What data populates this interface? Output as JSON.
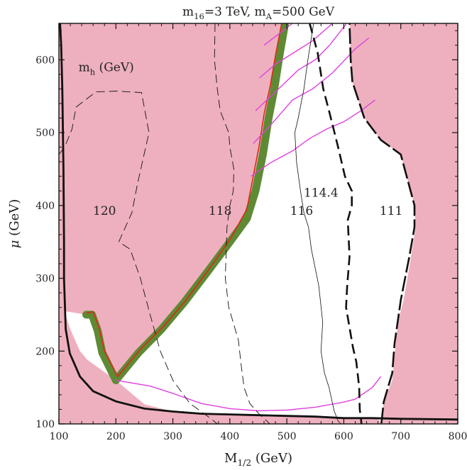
{
  "chart_data": {
    "type": "contour",
    "title_parts": [
      {
        "t": "m",
        "sub": "16",
        "after": "=3 TeV,  "
      },
      {
        "t": "m",
        "sub": "A",
        "after": "=500 GeV"
      }
    ],
    "xlabel": {
      "t": "M",
      "sub": "1/2",
      "after": " (GeV)"
    },
    "ylabel": {
      "greek": "μ",
      "after": " (GeV)"
    },
    "xlim": [
      100,
      800
    ],
    "ylim": [
      100,
      650
    ],
    "x_ticks": [
      100,
      200,
      300,
      400,
      500,
      600,
      700,
      800
    ],
    "y_ticks": [
      100,
      200,
      300,
      400,
      500,
      600
    ],
    "x_tick_labels": [
      "100",
      "200",
      "300",
      "400",
      "500",
      "600",
      "700",
      "800"
    ],
    "y_tick_labels": [
      "100",
      "200",
      "300",
      "400",
      "500",
      "600"
    ],
    "colors": {
      "excluded": "#eeb0be",
      "band_green": "#5e8a34",
      "band_red": "#dd2a1a",
      "magenta": "#e040e0",
      "line": "#111111"
    },
    "annotation_mh": {
      "t": "m",
      "sub": "h",
      "after": " (GeV)",
      "x": 168,
      "y": 590
    },
    "contour_labels": [
      {
        "text": "120",
        "x": 180,
        "y": 393
      },
      {
        "text": "118",
        "x": 383,
        "y": 393
      },
      {
        "text": "116",
        "x": 526,
        "y": 393
      },
      {
        "text": "114.4",
        "x": 560,
        "y": 418
      },
      {
        "text": "111",
        "x": 683,
        "y": 393
      }
    ],
    "excluded_left_region": [
      [
        100,
        650
      ],
      [
        100,
        100
      ],
      [
        612,
        100
      ],
      [
        606,
        150
      ],
      [
        598,
        175
      ],
      [
        585,
        190
      ],
      [
        570,
        197
      ],
      [
        555,
        199
      ],
      [
        540,
        200
      ],
      [
        520,
        202
      ],
      [
        500,
        203
      ],
      [
        480,
        204
      ],
      [
        460,
        205
      ],
      [
        440,
        205
      ],
      [
        420,
        205
      ],
      [
        400,
        205
      ],
      [
        380,
        205
      ],
      [
        360,
        205
      ],
      [
        340,
        204
      ],
      [
        320,
        203
      ],
      [
        300,
        202
      ],
      [
        280,
        200
      ],
      [
        260,
        198
      ],
      [
        240,
        194
      ],
      [
        225,
        189
      ],
      [
        212,
        180
      ],
      [
        203,
        162
      ],
      [
        220,
        178
      ],
      [
        260,
        215
      ],
      [
        300,
        248
      ],
      [
        340,
        290
      ],
      [
        380,
        330
      ],
      [
        410,
        365
      ],
      [
        438,
        400
      ],
      [
        449,
        440
      ],
      [
        459,
        480
      ],
      [
        470,
        525
      ],
      [
        480,
        565
      ],
      [
        490,
        610
      ],
      [
        498,
        650
      ]
    ],
    "excluded_right_region": [
      [
        800,
        650
      ],
      [
        800,
        100
      ],
      [
        660,
        100
      ],
      [
        670,
        130
      ],
      [
        685,
        160
      ],
      [
        690,
        200
      ],
      [
        695,
        240
      ],
      [
        705,
        270
      ],
      [
        718,
        330
      ],
      [
        726,
        370
      ],
      [
        724,
        400
      ],
      [
        700,
        470
      ],
      [
        665,
        490
      ],
      [
        630,
        520
      ],
      [
        610,
        570
      ],
      [
        612,
        600
      ],
      [
        610,
        650
      ]
    ],
    "allowed_region": [
      [
        127,
        650
      ],
      [
        128,
        600
      ],
      [
        132,
        500
      ],
      [
        135,
        400
      ],
      [
        138,
        300
      ],
      [
        140,
        250
      ],
      [
        150,
        200
      ],
      [
        170,
        172
      ],
      [
        200,
        158
      ],
      [
        250,
        127
      ],
      [
        300,
        117
      ],
      [
        350,
        114
      ],
      [
        400,
        113
      ],
      [
        450,
        112
      ],
      [
        500,
        111
      ],
      [
        550,
        110
      ],
      [
        600,
        108
      ],
      [
        650,
        108
      ],
      [
        700,
        107
      ],
      [
        800,
        105
      ],
      [
        800,
        100
      ],
      [
        100,
        100
      ],
      [
        100,
        650
      ]
    ],
    "boundary_left": [
      [
        102,
        650
      ],
      [
        104,
        620
      ],
      [
        106,
        560
      ],
      [
        108,
        450
      ],
      [
        109,
        350
      ],
      [
        109,
        300
      ],
      [
        112,
        230
      ],
      [
        119,
        197
      ],
      [
        137,
        165
      ],
      [
        160,
        145
      ],
      [
        200,
        131
      ],
      [
        250,
        121
      ],
      [
        300,
        117
      ],
      [
        350,
        114
      ],
      [
        400,
        113
      ],
      [
        450,
        112
      ],
      [
        500,
        111
      ],
      [
        550,
        110
      ],
      [
        600,
        108
      ],
      [
        650,
        108
      ],
      [
        700,
        107
      ],
      [
        800,
        106
      ]
    ],
    "boundary_right_solid": [
      [
        666,
        101
      ],
      [
        670,
        130
      ],
      [
        685,
        170
      ],
      [
        689,
        210
      ],
      [
        700,
        270
      ],
      [
        715,
        330
      ],
      [
        724,
        370
      ],
      [
        724,
        400
      ],
      [
        700,
        470
      ],
      [
        665,
        490
      ],
      [
        636,
        520
      ],
      [
        615,
        570
      ],
      [
        612,
        600
      ],
      [
        610,
        650
      ]
    ],
    "green_band": [
      [
        148,
        250
      ],
      [
        158,
        250
      ],
      [
        168,
        228
      ],
      [
        176,
        198
      ],
      [
        200,
        160
      ],
      [
        240,
        198
      ],
      [
        280,
        230
      ],
      [
        320,
        267
      ],
      [
        360,
        308
      ],
      [
        400,
        350
      ],
      [
        430,
        382
      ],
      [
        445,
        420
      ],
      [
        458,
        470
      ],
      [
        468,
        520
      ],
      [
        478,
        560
      ],
      [
        488,
        610
      ],
      [
        497,
        650
      ]
    ],
    "red_edge": [
      [
        148,
        252
      ],
      [
        160,
        254
      ],
      [
        170,
        233
      ],
      [
        180,
        200
      ],
      [
        203,
        165
      ],
      [
        246,
        205
      ],
      [
        285,
        235
      ],
      [
        323,
        270
      ],
      [
        363,
        312
      ],
      [
        400,
        353
      ],
      [
        430,
        395
      ],
      [
        441,
        440
      ],
      [
        451,
        480
      ],
      [
        460,
        525
      ],
      [
        471,
        565
      ],
      [
        481,
        610
      ],
      [
        491,
        650
      ]
    ],
    "contour_120": [
      [
        100,
        470
      ],
      [
        110,
        480
      ],
      [
        123,
        505
      ],
      [
        130,
        535
      ],
      [
        165,
        556
      ],
      [
        202,
        557
      ],
      [
        245,
        555
      ],
      [
        258,
        500
      ],
      [
        238,
        430
      ],
      [
        228,
        390
      ],
      [
        205,
        350
      ],
      [
        225,
        340
      ],
      [
        243,
        300
      ],
      [
        260,
        250
      ],
      [
        278,
        200
      ],
      [
        300,
        160
      ],
      [
        330,
        128
      ],
      [
        362,
        110
      ],
      [
        378,
        100
      ]
    ],
    "contour_118": [
      [
        374,
        650
      ],
      [
        373,
        600
      ],
      [
        378,
        560
      ],
      [
        383,
        530
      ],
      [
        398,
        500
      ],
      [
        400,
        480
      ],
      [
        407,
        450
      ],
      [
        406,
        420
      ],
      [
        400,
        400
      ],
      [
        395,
        370
      ],
      [
        392,
        300
      ],
      [
        398,
        260
      ],
      [
        415,
        215
      ],
      [
        420,
        180
      ],
      [
        425,
        150
      ],
      [
        435,
        128
      ],
      [
        452,
        113
      ],
      [
        465,
        104
      ],
      [
        470,
        100
      ]
    ],
    "contour_116": [
      [
        547,
        650
      ],
      [
        537,
        600
      ],
      [
        530,
        560
      ],
      [
        520,
        520
      ],
      [
        514,
        500
      ],
      [
        517,
        460
      ],
      [
        524,
        420
      ],
      [
        530,
        390
      ],
      [
        538,
        370
      ],
      [
        543,
        340
      ],
      [
        556,
        290
      ],
      [
        563,
        240
      ],
      [
        560,
        200
      ],
      [
        566,
        170
      ],
      [
        574,
        150
      ],
      [
        583,
        118
      ],
      [
        590,
        104
      ],
      [
        595,
        100
      ]
    ],
    "contour_1144": [
      [
        540,
        650
      ],
      [
        554,
        610
      ],
      [
        564,
        560
      ],
      [
        574,
        530
      ],
      [
        590,
        480
      ],
      [
        602,
        440
      ],
      [
        614,
        420
      ],
      [
        614,
        400
      ],
      [
        607,
        380
      ],
      [
        610,
        330
      ],
      [
        606,
        290
      ],
      [
        604,
        260
      ],
      [
        616,
        205
      ],
      [
        622,
        185
      ],
      [
        627,
        150
      ],
      [
        628,
        120
      ],
      [
        630,
        108
      ],
      [
        631,
        100
      ]
    ],
    "magenta_lines": [
      [
        [
          200,
          160
        ],
        [
          260,
          152
        ],
        [
          300,
          142
        ],
        [
          350,
          128
        ],
        [
          400,
          121
        ],
        [
          450,
          118
        ],
        [
          500,
          119
        ],
        [
          550,
          123
        ],
        [
          600,
          130
        ],
        [
          620,
          134
        ],
        [
          650,
          150
        ],
        [
          665,
          165
        ]
      ],
      [
        [
          437,
          440
        ],
        [
          470,
          458
        ],
        [
          510,
          475
        ],
        [
          540,
          492
        ],
        [
          570,
          505
        ],
        [
          600,
          515
        ],
        [
          630,
          530
        ],
        [
          655,
          545
        ]
      ],
      [
        [
          441,
          485
        ],
        [
          470,
          509
        ],
        [
          510,
          545
        ],
        [
          545,
          560
        ],
        [
          580,
          582
        ],
        [
          620,
          615
        ],
        [
          644,
          630
        ]
      ],
      [
        [
          445,
          530
        ],
        [
          480,
          556
        ],
        [
          520,
          586
        ],
        [
          550,
          600
        ],
        [
          575,
          620
        ],
        [
          605,
          650
        ]
      ],
      [
        [
          452,
          575
        ],
        [
          480,
          594
        ],
        [
          525,
          616
        ],
        [
          545,
          626
        ],
        [
          580,
          650
        ]
      ],
      [
        [
          460,
          620
        ],
        [
          510,
          650
        ]
      ]
    ]
  }
}
